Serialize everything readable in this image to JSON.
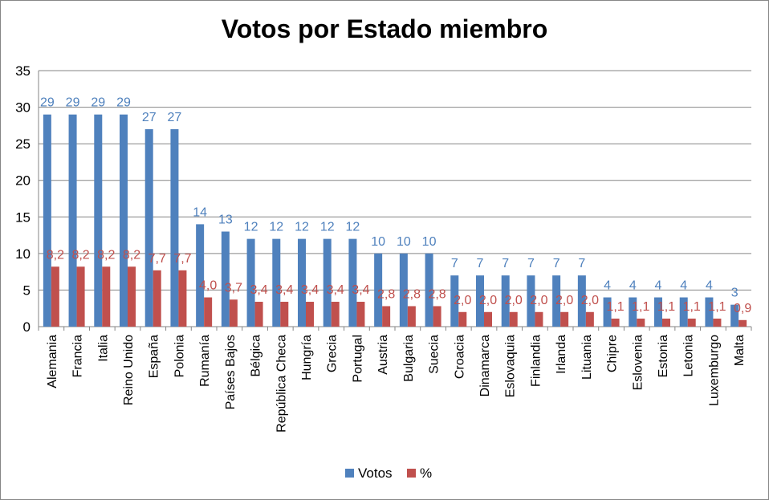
{
  "chart_data": {
    "type": "bar",
    "title": "Votos por Estado miembro",
    "xlabel": "",
    "ylabel": "",
    "ylim": [
      0,
      35
    ],
    "yticks": [
      "0",
      "5",
      "10",
      "15",
      "20",
      "25",
      "30",
      "35"
    ],
    "grid": true,
    "legend_position": "bottom",
    "categories": [
      "Alemania",
      "Francia",
      "Italia",
      "Reino Unido",
      "España",
      "Polonia",
      "Rumanía",
      "Países Bajos",
      "Bélgica",
      "República Checa",
      "Hungría",
      "Grecia",
      "Portugal",
      "Austria",
      "Bulgaria",
      "Suecia",
      "Croacia",
      "Dinamarca",
      "Eslovaquia",
      "Finlandia",
      "Irlanda",
      "Lituania",
      "Chipre",
      "Eslovenia",
      "Estonia",
      "Letonia",
      "Luxemburgo",
      "Malta"
    ],
    "series": [
      {
        "name": "Votos",
        "color": "#4F81BD",
        "label_color": "#4F81BD",
        "values": [
          29,
          29,
          29,
          29,
          27,
          27,
          14,
          13,
          12,
          12,
          12,
          12,
          12,
          10,
          10,
          10,
          7,
          7,
          7,
          7,
          7,
          7,
          4,
          4,
          4,
          4,
          4,
          3
        ],
        "labels": [
          "29",
          "29",
          "29",
          "29",
          "27",
          "27",
          "14",
          "13",
          "12",
          "12",
          "12",
          "12",
          "12",
          "10",
          "10",
          "10",
          "7",
          "7",
          "7",
          "7",
          "7",
          "7",
          "4",
          "4",
          "4",
          "4",
          "4",
          "3"
        ]
      },
      {
        "name": "%",
        "color": "#C0504D",
        "label_color": "#C0504D",
        "values": [
          8.2,
          8.2,
          8.2,
          8.2,
          7.7,
          7.7,
          4.0,
          3.7,
          3.4,
          3.4,
          3.4,
          3.4,
          3.4,
          2.8,
          2.8,
          2.8,
          2.0,
          2.0,
          2.0,
          2.0,
          2.0,
          2.0,
          1.1,
          1.1,
          1.1,
          1.1,
          1.1,
          0.9
        ],
        "labels": [
          "8,2",
          "8,2",
          "8,2",
          "8,2",
          "7,7",
          "7,7",
          "4,0",
          "3,7",
          "3,4",
          "3,4",
          "3,4",
          "3,4",
          "3,4",
          "2,8",
          "2,8",
          "2,8",
          "2,0",
          "2,0",
          "2,0",
          "2,0",
          "2,0",
          "2,0",
          "1,1",
          "1,1",
          "1,1",
          "1,1",
          "1,1",
          "0,9"
        ]
      }
    ]
  }
}
